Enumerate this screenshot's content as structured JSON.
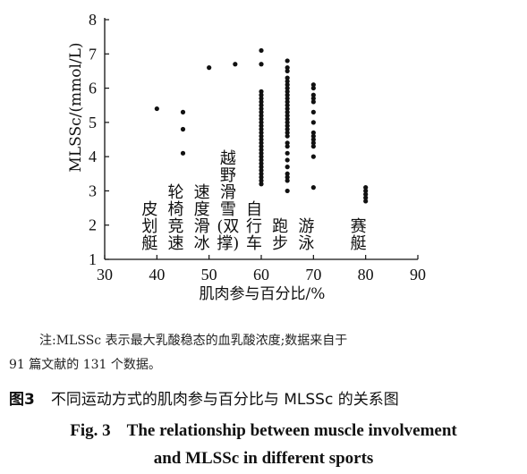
{
  "chart_data": {
    "type": "scatter",
    "xlabel": "肌肉参与百分比/%",
    "ylabel": "MLSSc/(mmol/L)",
    "xlim": [
      30,
      90
    ],
    "ylim": [
      1,
      8
    ],
    "xticks": [
      "30",
      "40",
      "50",
      "60",
      "70",
      "80",
      "90"
    ],
    "yticks": [
      "1",
      "2",
      "3",
      "4",
      "5",
      "6",
      "7",
      "8"
    ],
    "grid": false,
    "series": [
      {
        "name": "皮划艇",
        "x": 40,
        "y": [
          5.4
        ]
      },
      {
        "name": "轮椅竞速",
        "x": 45,
        "y": [
          5.3,
          4.8,
          4.1
        ]
      },
      {
        "name": "速度滑冰",
        "x": 50,
        "y": [
          6.6
        ]
      },
      {
        "name": "越野滑雪(双撑)",
        "x": 55,
        "y": [
          6.7
        ]
      },
      {
        "name": "自行车",
        "x": 60,
        "y": [
          7.1,
          6.7,
          5.9,
          5.8,
          5.7,
          5.6,
          5.5,
          5.4,
          5.3,
          5.2,
          5.1,
          5.0,
          4.9,
          4.8,
          4.7,
          4.6,
          4.5,
          4.4,
          4.3,
          4.2,
          4.1,
          4.0,
          3.9,
          3.8,
          3.7,
          3.6,
          3.5,
          3.4,
          3.3,
          3.2
        ]
      },
      {
        "name": "跑步",
        "x": 65,
        "y": [
          6.8,
          6.6,
          6.5,
          6.3,
          6.2,
          6.1,
          6.0,
          5.9,
          5.8,
          5.7,
          5.6,
          5.5,
          5.4,
          5.3,
          5.2,
          5.1,
          5.0,
          4.9,
          4.8,
          4.7,
          4.6,
          4.4,
          4.3,
          4.1,
          3.9,
          3.7,
          3.5,
          3.4,
          3.3,
          3.0
        ]
      },
      {
        "name": "游泳",
        "x": 70,
        "y": [
          6.1,
          6.0,
          5.8,
          5.7,
          5.6,
          5.3,
          5.0,
          4.7,
          4.6,
          4.5,
          4.4,
          4.3,
          4.0,
          3.1
        ]
      },
      {
        "name": "赛艇",
        "x": 80,
        "y": [
          3.1,
          3.0,
          2.9,
          2.8,
          2.7
        ]
      }
    ],
    "sport_labels": [
      {
        "x": 40,
        "lines": [
          "皮",
          "划",
          "艇"
        ]
      },
      {
        "x": 45,
        "lines": [
          "轮椅",
          "椅竞",
          "竞速"
        ]
      },
      {
        "x": 50,
        "lines": [
          "速",
          "度",
          "滑",
          "冰"
        ]
      },
      {
        "x": 55,
        "lines": [
          "越",
          "野",
          "滑",
          "雪",
          "(双",
          "撑)"
        ]
      },
      {
        "x": 60,
        "lines": [
          "自",
          "行",
          "车"
        ]
      },
      {
        "x": 65,
        "lines": [
          "跑",
          "步"
        ]
      },
      {
        "x": 70,
        "lines": [
          "游",
          "泳"
        ]
      },
      {
        "x": 80,
        "lines": [
          "赛",
          "艇"
        ]
      }
    ]
  },
  "note": {
    "line1": "注:MLSSc 表示最大乳酸稳态的血乳酸浓度;数据来自于",
    "line2": "91 篇文献的 131 个数据。"
  },
  "caption_cn": {
    "fig_no": "图3",
    "text": "不同运动方式的肌肉参与百分比与 MLSSc 的关系图"
  },
  "caption_en": {
    "fig_no": "Fig. 3",
    "line1": "The relationship between muscle involvement",
    "line2": "and MLSSc in different sports"
  }
}
